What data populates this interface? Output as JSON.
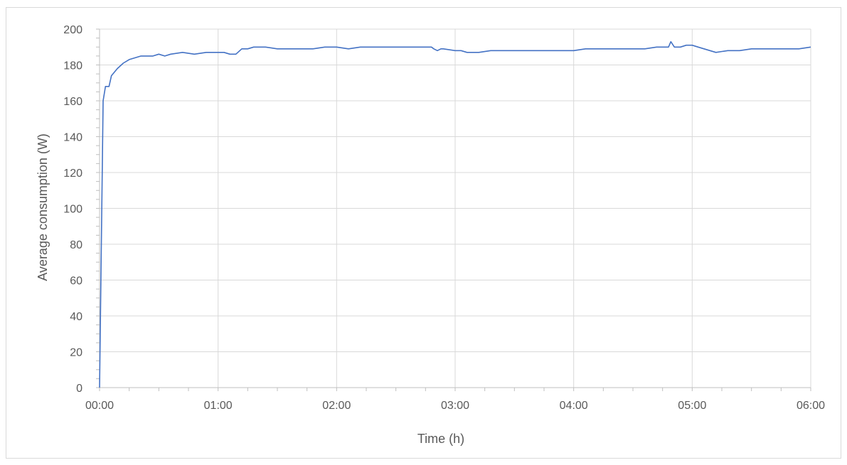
{
  "chart_data": {
    "type": "line",
    "title": "",
    "xlabel": "Time (h)",
    "ylabel": "Average consumption (W)",
    "x_tick_labels": [
      "00:00",
      "01:00",
      "02:00",
      "03:00",
      "04:00",
      "05:00",
      "06:00"
    ],
    "y_tick_labels": [
      "0",
      "20",
      "40",
      "60",
      "80",
      "100",
      "120",
      "140",
      "160",
      "180",
      "200"
    ],
    "xlim_hours": [
      0,
      6
    ],
    "ylim": [
      0,
      200
    ],
    "grid": true,
    "legend": "none",
    "series": [
      {
        "color": "#4472c4",
        "points": [
          [
            0.0,
            0
          ],
          [
            0.03,
            160
          ],
          [
            0.05,
            168
          ],
          [
            0.08,
            168
          ],
          [
            0.1,
            174
          ],
          [
            0.15,
            178
          ],
          [
            0.2,
            181
          ],
          [
            0.25,
            183
          ],
          [
            0.3,
            184
          ],
          [
            0.35,
            185
          ],
          [
            0.4,
            185
          ],
          [
            0.45,
            185
          ],
          [
            0.5,
            186
          ],
          [
            0.55,
            185
          ],
          [
            0.6,
            186
          ],
          [
            0.7,
            187
          ],
          [
            0.8,
            186
          ],
          [
            0.9,
            187
          ],
          [
            1.0,
            187
          ],
          [
            1.05,
            187
          ],
          [
            1.1,
            186
          ],
          [
            1.15,
            186
          ],
          [
            1.2,
            189
          ],
          [
            1.25,
            189
          ],
          [
            1.3,
            190
          ],
          [
            1.4,
            190
          ],
          [
            1.5,
            189
          ],
          [
            1.6,
            189
          ],
          [
            1.7,
            189
          ],
          [
            1.8,
            189
          ],
          [
            1.9,
            190
          ],
          [
            2.0,
            190
          ],
          [
            2.1,
            189
          ],
          [
            2.2,
            190
          ],
          [
            2.3,
            190
          ],
          [
            2.4,
            190
          ],
          [
            2.5,
            190
          ],
          [
            2.6,
            190
          ],
          [
            2.7,
            190
          ],
          [
            2.8,
            190
          ],
          [
            2.82,
            189
          ],
          [
            2.85,
            188
          ],
          [
            2.88,
            189
          ],
          [
            2.9,
            189
          ],
          [
            3.0,
            188
          ],
          [
            3.05,
            188
          ],
          [
            3.1,
            187
          ],
          [
            3.2,
            187
          ],
          [
            3.3,
            188
          ],
          [
            3.4,
            188
          ],
          [
            3.5,
            188
          ],
          [
            3.6,
            188
          ],
          [
            3.7,
            188
          ],
          [
            3.8,
            188
          ],
          [
            3.9,
            188
          ],
          [
            4.0,
            188
          ],
          [
            4.1,
            189
          ],
          [
            4.2,
            189
          ],
          [
            4.3,
            189
          ],
          [
            4.4,
            189
          ],
          [
            4.5,
            189
          ],
          [
            4.6,
            189
          ],
          [
            4.7,
            190
          ],
          [
            4.75,
            190
          ],
          [
            4.8,
            190
          ],
          [
            4.82,
            193
          ],
          [
            4.85,
            190
          ],
          [
            4.9,
            190
          ],
          [
            4.95,
            191
          ],
          [
            5.0,
            191
          ],
          [
            5.05,
            190
          ],
          [
            5.1,
            189
          ],
          [
            5.15,
            188
          ],
          [
            5.2,
            187
          ],
          [
            5.3,
            188
          ],
          [
            5.4,
            188
          ],
          [
            5.5,
            189
          ],
          [
            5.6,
            189
          ],
          [
            5.7,
            189
          ],
          [
            5.8,
            189
          ],
          [
            5.9,
            189
          ],
          [
            6.0,
            190
          ]
        ]
      }
    ]
  }
}
